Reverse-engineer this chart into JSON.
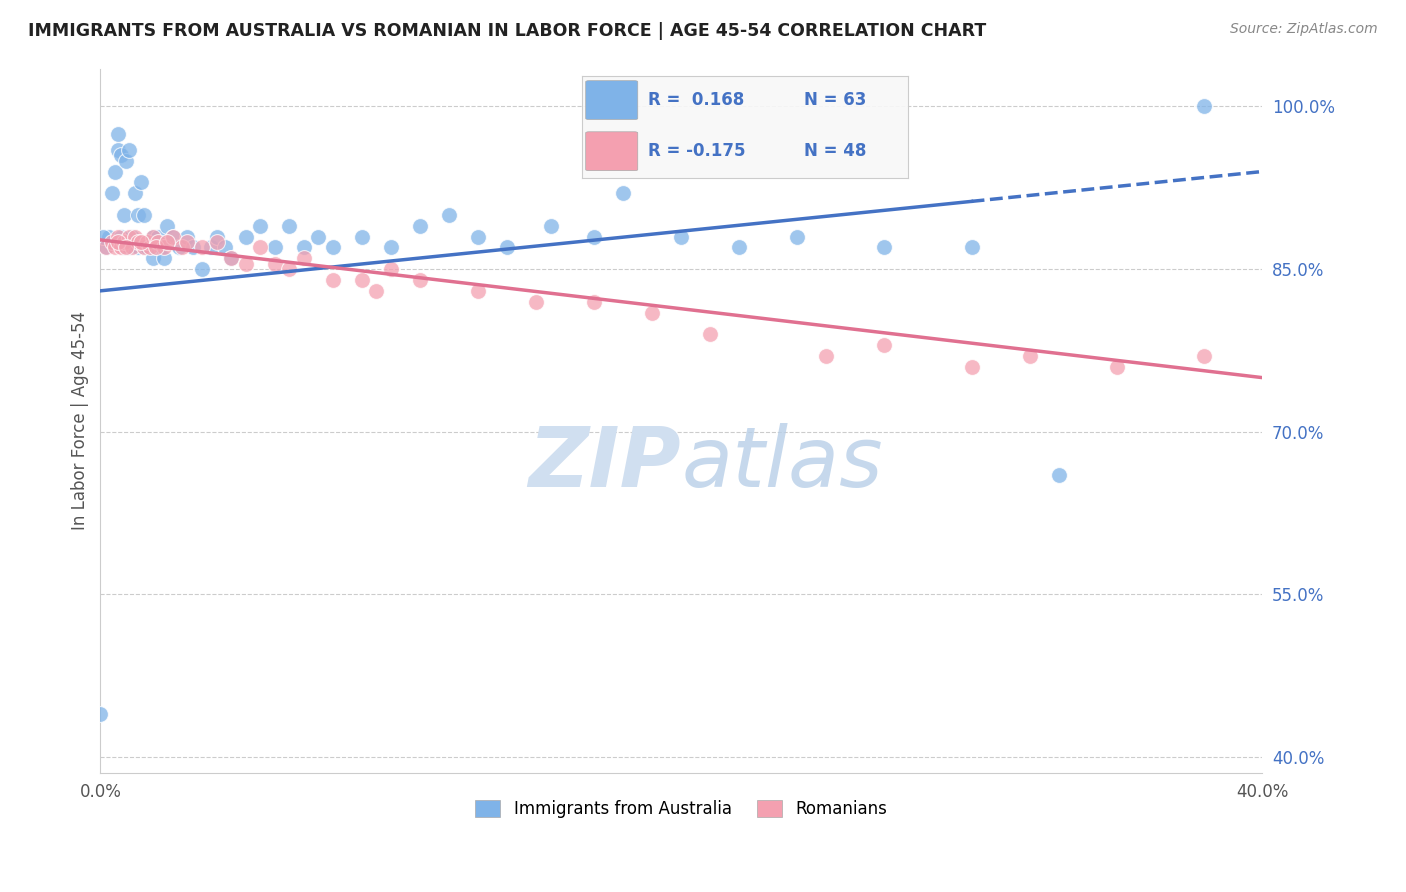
{
  "title": "IMMIGRANTS FROM AUSTRALIA VS ROMANIAN IN LABOR FORCE | AGE 45-54 CORRELATION CHART",
  "source": "Source: ZipAtlas.com",
  "ylabel": "In Labor Force | Age 45-54",
  "ytick_labels": [
    "40.0%",
    "55.0%",
    "70.0%",
    "85.0%",
    "100.0%"
  ],
  "ytick_values": [
    0.4,
    0.55,
    0.7,
    0.85,
    1.0
  ],
  "xlim": [
    0.0,
    0.4
  ],
  "ylim": [
    0.385,
    1.035
  ],
  "color_australia": "#7FB3E8",
  "color_romanian": "#F4A0B0",
  "trendline_color_australia": "#4472C4",
  "trendline_color_romanian": "#E07090",
  "background_color": "#ffffff",
  "watermark_color": "#d0dff0",
  "legend_box_color": "#f8f8f8",
  "aus_scatter_x": [
    0.002,
    0.003,
    0.004,
    0.005,
    0.006,
    0.006,
    0.007,
    0.008,
    0.008,
    0.009,
    0.01,
    0.01,
    0.011,
    0.012,
    0.013,
    0.013,
    0.014,
    0.015,
    0.015,
    0.016,
    0.017,
    0.018,
    0.018,
    0.019,
    0.02,
    0.021,
    0.022,
    0.023,
    0.025,
    0.027,
    0.03,
    0.032,
    0.035,
    0.038,
    0.04,
    0.043,
    0.045,
    0.05,
    0.055,
    0.06,
    0.065,
    0.07,
    0.075,
    0.08,
    0.09,
    0.1,
    0.11,
    0.12,
    0.13,
    0.14,
    0.155,
    0.17,
    0.18,
    0.2,
    0.22,
    0.24,
    0.27,
    0.3,
    0.33,
    0.0,
    0.001,
    0.007,
    0.38
  ],
  "aus_scatter_y": [
    0.87,
    0.88,
    0.92,
    0.94,
    0.96,
    0.975,
    0.955,
    0.9,
    0.87,
    0.95,
    0.87,
    0.96,
    0.88,
    0.92,
    0.87,
    0.9,
    0.93,
    0.87,
    0.9,
    0.87,
    0.87,
    0.88,
    0.86,
    0.87,
    0.88,
    0.87,
    0.86,
    0.89,
    0.88,
    0.87,
    0.88,
    0.87,
    0.85,
    0.87,
    0.88,
    0.87,
    0.86,
    0.88,
    0.89,
    0.87,
    0.89,
    0.87,
    0.88,
    0.87,
    0.88,
    0.87,
    0.89,
    0.9,
    0.88,
    0.87,
    0.89,
    0.88,
    0.92,
    0.88,
    0.87,
    0.88,
    0.87,
    0.87,
    0.66,
    0.44,
    0.88,
    0.88,
    1.0
  ],
  "rom_scatter_x": [
    0.002,
    0.004,
    0.005,
    0.006,
    0.007,
    0.008,
    0.01,
    0.011,
    0.012,
    0.013,
    0.015,
    0.016,
    0.017,
    0.018,
    0.02,
    0.022,
    0.025,
    0.028,
    0.03,
    0.035,
    0.04,
    0.045,
    0.05,
    0.055,
    0.06,
    0.065,
    0.07,
    0.08,
    0.09,
    0.095,
    0.1,
    0.11,
    0.13,
    0.15,
    0.17,
    0.19,
    0.21,
    0.25,
    0.27,
    0.3,
    0.32,
    0.35,
    0.38,
    0.006,
    0.009,
    0.014,
    0.019,
    0.023
  ],
  "rom_scatter_y": [
    0.87,
    0.875,
    0.87,
    0.88,
    0.87,
    0.875,
    0.88,
    0.87,
    0.88,
    0.875,
    0.87,
    0.875,
    0.87,
    0.88,
    0.875,
    0.87,
    0.88,
    0.87,
    0.875,
    0.87,
    0.875,
    0.86,
    0.855,
    0.87,
    0.855,
    0.85,
    0.86,
    0.84,
    0.84,
    0.83,
    0.85,
    0.84,
    0.83,
    0.82,
    0.82,
    0.81,
    0.79,
    0.77,
    0.78,
    0.76,
    0.77,
    0.76,
    0.77,
    0.875,
    0.87,
    0.875,
    0.87,
    0.875
  ],
  "trendline_aus_x0": 0.0,
  "trendline_aus_x1": 0.4,
  "trendline_aus_y0": 0.83,
  "trendline_aus_y1": 0.94,
  "trendline_rom_x0": 0.0,
  "trendline_rom_x1": 0.4,
  "trendline_rom_y0": 0.877,
  "trendline_rom_y1": 0.75
}
